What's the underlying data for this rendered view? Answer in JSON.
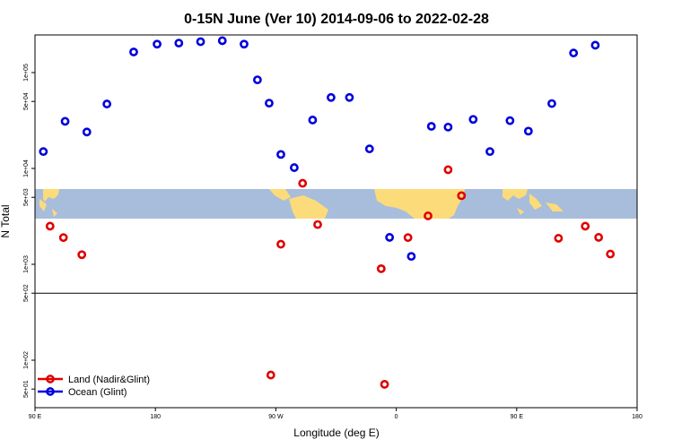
{
  "chart_data": {
    "type": "scatter",
    "title": "0-15N June (Ver 10)   2014-09-06 to 2022-02-28",
    "xlabel": "Longitude (deg E)",
    "ylabel": "N Total",
    "xlim": [
      90,
      270
    ],
    "x_ticks": [
      {
        "value": 90,
        "label": "90 E"
      },
      {
        "value": 126,
        "label": "180"
      },
      {
        "value": 162,
        "label": "90 W"
      },
      {
        "value": 198,
        "label": "0"
      },
      {
        "value": 234,
        "label": "90 E"
      },
      {
        "value": 270,
        "label": "180"
      }
    ],
    "y_ticks": [
      {
        "value": 50,
        "label": "5e+01"
      },
      {
        "value": 100,
        "label": "1e+02"
      },
      {
        "value": 500,
        "label": "5e+02"
      },
      {
        "value": 1000,
        "label": "1e+03"
      },
      {
        "value": 5000,
        "label": "5e+03"
      },
      {
        "value": 10000,
        "label": "1e+04"
      },
      {
        "value": 50000,
        "label": "5e+04"
      },
      {
        "value": 100000,
        "label": "1e+05"
      }
    ],
    "separator_value": 500,
    "series": [
      {
        "name": "Land (Nadir&Glint)",
        "color": "#e00000",
        "points": [
          {
            "x": 94.5,
            "y": 2500
          },
          {
            "x": 98.5,
            "y": 1900
          },
          {
            "x": 104.0,
            "y": 1260
          },
          {
            "x": 160.5,
            "y": 70
          },
          {
            "x": 163.5,
            "y": 1620
          },
          {
            "x": 170.0,
            "y": 7000
          },
          {
            "x": 174.5,
            "y": 2600
          },
          {
            "x": 193.5,
            "y": 900
          },
          {
            "x": 194.5,
            "y": 56
          },
          {
            "x": 201.5,
            "y": 1900
          },
          {
            "x": 207.5,
            "y": 3200
          },
          {
            "x": 213.5,
            "y": 9700
          },
          {
            "x": 217.5,
            "y": 5200
          },
          {
            "x": 246.5,
            "y": 1870
          },
          {
            "x": 254.5,
            "y": 2500
          },
          {
            "x": 258.5,
            "y": 1910
          },
          {
            "x": 262.0,
            "y": 1280
          }
        ]
      },
      {
        "name": "Ocean (Glint)",
        "color": "#0000dd",
        "points": [
          {
            "x": 92.5,
            "y": 15000
          },
          {
            "x": 99.0,
            "y": 31000
          },
          {
            "x": 105.5,
            "y": 24000
          },
          {
            "x": 111.5,
            "y": 47000
          },
          {
            "x": 119.5,
            "y": 164000
          },
          {
            "x": 126.5,
            "y": 198000
          },
          {
            "x": 133.0,
            "y": 203000
          },
          {
            "x": 139.5,
            "y": 210000
          },
          {
            "x": 146.0,
            "y": 215000
          },
          {
            "x": 152.5,
            "y": 198000
          },
          {
            "x": 156.5,
            "y": 84000
          },
          {
            "x": 160.0,
            "y": 48000
          },
          {
            "x": 163.5,
            "y": 14000
          },
          {
            "x": 167.5,
            "y": 10200
          },
          {
            "x": 173.0,
            "y": 32000
          },
          {
            "x": 178.5,
            "y": 55000
          },
          {
            "x": 184.0,
            "y": 55000
          },
          {
            "x": 190.0,
            "y": 16000
          },
          {
            "x": 196.0,
            "y": 1910
          },
          {
            "x": 202.5,
            "y": 1210
          },
          {
            "x": 208.5,
            "y": 27500
          },
          {
            "x": 213.5,
            "y": 27000
          },
          {
            "x": 221.0,
            "y": 32500
          },
          {
            "x": 226.0,
            "y": 15000
          },
          {
            "x": 232.0,
            "y": 31500
          },
          {
            "x": 237.5,
            "y": 24500
          },
          {
            "x": 244.5,
            "y": 47500
          },
          {
            "x": 251.0,
            "y": 160000
          },
          {
            "x": 257.5,
            "y": 193000
          }
        ]
      }
    ],
    "legend": {
      "position": "bottom-left",
      "entries": [
        {
          "label": "Land (Nadir&Glint)",
          "color": "#e00000"
        },
        {
          "label": "Ocean (Glint)",
          "color": "#0000dd"
        }
      ]
    }
  }
}
